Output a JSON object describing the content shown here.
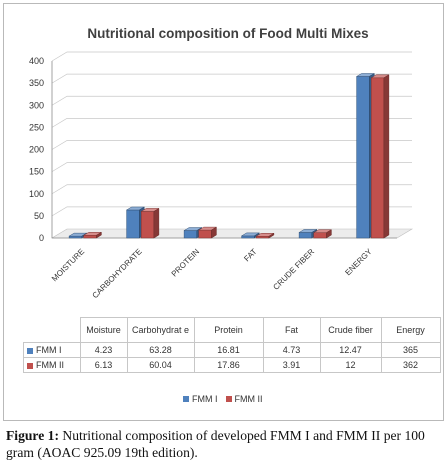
{
  "chart_data": {
    "type": "bar",
    "style": "3d-clustered-column",
    "title": "Nutritional composition of Food Multi Mixes",
    "categories": [
      "MOISTURE",
      "CARBOHYDRATE",
      "PROTEIN",
      "FAT",
      "CRUDE FIBER",
      "ENERGY"
    ],
    "table_headers": [
      "Moisture",
      "Carbohydrat e",
      "Protein",
      "Fat",
      "Crude fiber",
      "Energy"
    ],
    "series": [
      {
        "name": "FMM I",
        "color": "#4f81bd",
        "values": [
          4.23,
          63.28,
          16.81,
          4.73,
          12.47,
          365
        ],
        "labels": [
          "4.23",
          "63.28",
          "16.81",
          "4.73",
          "12.47",
          "365"
        ]
      },
      {
        "name": "FMM II",
        "color": "#c0504d",
        "values": [
          6.13,
          60.04,
          17.86,
          3.91,
          12,
          362
        ],
        "labels": [
          "6.13",
          "60.04",
          "17.86",
          "3.91",
          "12",
          "362"
        ]
      }
    ],
    "ylim": [
      0,
      400
    ],
    "yticks": [
      "0",
      "50",
      "100",
      "150",
      "200",
      "250",
      "300",
      "350",
      "400"
    ],
    "grid": true,
    "legend_position": "bottom"
  },
  "caption": {
    "label": "Figure 1:",
    "text": " Nutritional composition of developed FMM I and FMM II per 100 gram (AOAC 925.09 19th edition)."
  }
}
